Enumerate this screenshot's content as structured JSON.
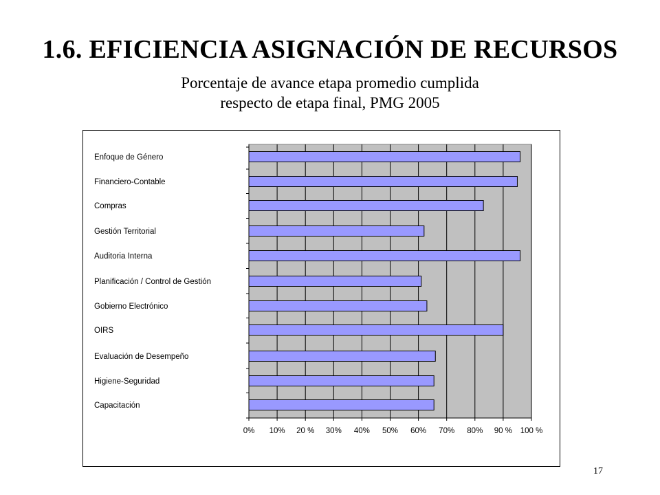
{
  "slide": {
    "title": "1.6. EFICIENCIA ASIGNACIÓN DE RECURSOS",
    "page_number": "17"
  },
  "chart_data": {
    "type": "bar",
    "orientation": "horizontal",
    "title": "",
    "subtitle_lines": [
      "Porcentaje de avance etapa promedio cumplida",
      "respecto de etapa final, PMG 2005"
    ],
    "xlabel": "",
    "ylabel": "",
    "xlim": [
      0,
      100
    ],
    "x_ticks": [
      0,
      10,
      20,
      30,
      40,
      50,
      60,
      70,
      80,
      90,
      100
    ],
    "x_tick_labels": [
      "0%",
      "10%",
      "20 %",
      "30%",
      "40%",
      "50%",
      "60%",
      "70%",
      "80%",
      "90 %",
      "100 %"
    ],
    "grid": true,
    "legend": "none",
    "categories": [
      "Enfoque de Género",
      "Financiero-Contable",
      "Compras",
      "Gestión Territorial",
      "Auditoria Interna",
      "Planificación / Control de Gestión",
      "Gobierno Electrónico",
      "OIRS",
      "Evaluación de Desempeño",
      "Higiene-Seguridad",
      "Capacitación"
    ],
    "values": [
      96,
      95,
      83,
      62,
      96,
      61,
      63,
      90,
      66,
      65.5,
      65.5
    ],
    "colors": {
      "bar_fill": "#9999ff",
      "bar_stroke": "#000000",
      "plot_background": "#c0c0c0",
      "gridline": "#000000"
    }
  }
}
